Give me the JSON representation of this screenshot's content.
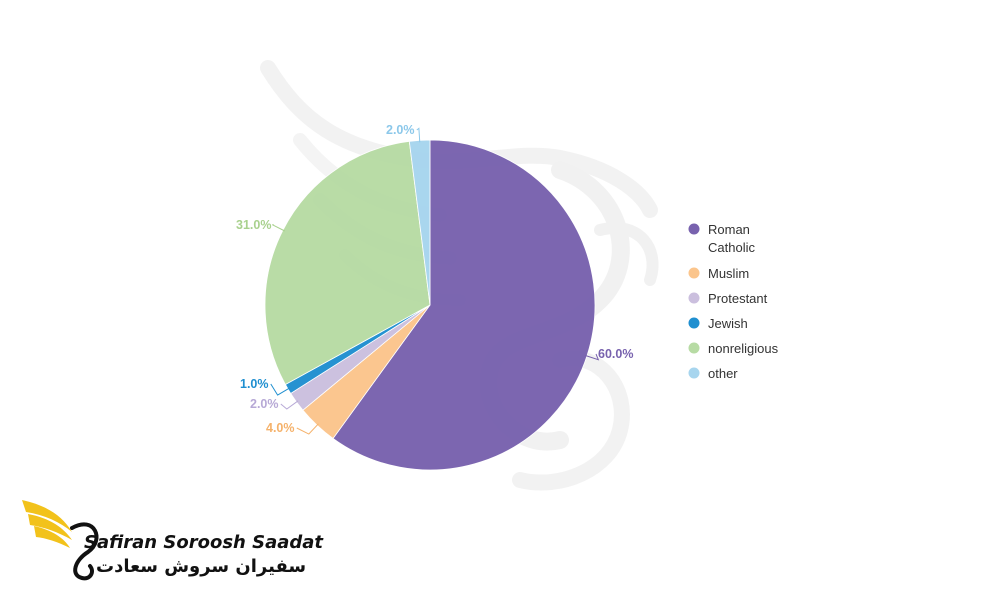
{
  "chart_data": {
    "type": "pie",
    "title": "",
    "start_angle_deg": 0,
    "direction": "clockwise",
    "slices": [
      {
        "name": "Roman Catholic",
        "value": 60.0,
        "label": "60.0%",
        "color": "#7862ae"
      },
      {
        "name": "Muslim",
        "value": 4.0,
        "label": "4.0%",
        "color": "#fbc58c"
      },
      {
        "name": "Protestant",
        "value": 2.0,
        "label": "2.0%",
        "color": "#cbbfde"
      },
      {
        "name": "Jewish",
        "value": 1.0,
        "label": "1.0%",
        "color": "#1f8fd0"
      },
      {
        "name": "nonreligious",
        "value": 31.0,
        "label": "31.0%",
        "color": "#b7dba4"
      },
      {
        "name": "other",
        "value": 2.0,
        "label": "2.0%",
        "color": "#a7d5ee"
      }
    ],
    "legend": {
      "placement": "right",
      "items": [
        {
          "lines": [
            "Roman",
            "Catholic"
          ],
          "color": "#7862ae"
        },
        {
          "lines": [
            "Muslim"
          ],
          "color": "#fbc58c"
        },
        {
          "lines": [
            "Protestant"
          ],
          "color": "#cbbfde"
        },
        {
          "lines": [
            "Jewish"
          ],
          "color": "#1f8fd0"
        },
        {
          "lines": [
            "nonreligious"
          ],
          "color": "#b7dba4"
        },
        {
          "lines": [
            "other"
          ],
          "color": "#a7d5ee"
        }
      ]
    },
    "label_colors": [
      "#7862ae",
      "#f5b26b",
      "#b7a9d6",
      "#1f8fd0",
      "#a9d18e",
      "#8cc8ea"
    ]
  },
  "branding": {
    "name_en": "Safiran Soroosh Saadat",
    "name_fa": "سفیران سروش سعادت",
    "logo_color": "#f2c21b"
  }
}
